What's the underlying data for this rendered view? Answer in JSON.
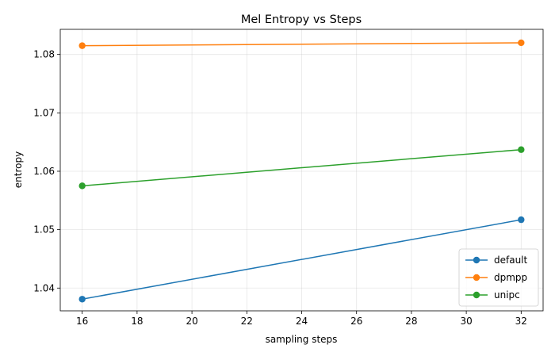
{
  "chart_data": {
    "type": "line",
    "title": "Mel Entropy vs Steps",
    "xlabel": "sampling steps",
    "ylabel": "entropy",
    "x": [
      16,
      32
    ],
    "xlim": [
      15.2,
      32.8
    ],
    "ylim": [
      1.0361,
      1.0843
    ],
    "xticks": [
      "16",
      "18",
      "20",
      "22",
      "24",
      "26",
      "28",
      "30",
      "32"
    ],
    "yticks": [
      "1.04",
      "1.05",
      "1.06",
      "1.07",
      "1.08"
    ],
    "grid": true,
    "legend_position": "lower-right",
    "series": [
      {
        "name": "default",
        "color": "#1f77b4",
        "values": [
          1.0381,
          1.0517
        ]
      },
      {
        "name": "dpmpp",
        "color": "#ff7f0e",
        "values": [
          1.0815,
          1.082
        ]
      },
      {
        "name": "unipc",
        "color": "#2ca02c",
        "values": [
          1.0575,
          1.0637
        ]
      }
    ]
  }
}
